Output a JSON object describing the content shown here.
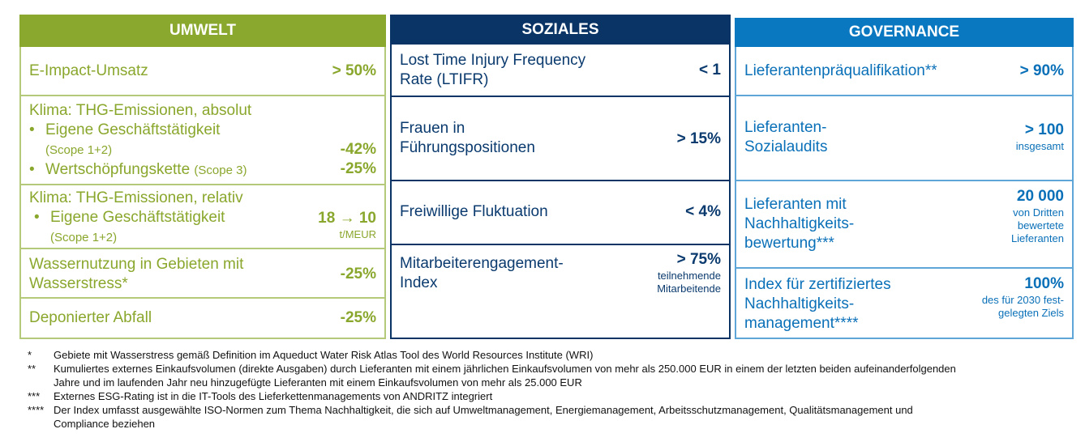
{
  "umwelt": {
    "title": "UMWELT",
    "rows": [
      {
        "label": "E-Impact-Umsatz",
        "value": "> 50%"
      },
      {
        "label": "Klima: THG-Emissionen, absolut",
        "b1": "Eigene Geschäftstätigkeit",
        "b1sub": "(Scope 1+2)",
        "v1": "-42%",
        "b2": "Wertschöpfungskette",
        "b2sub": "(Scope 3)",
        "v2": "-25%"
      },
      {
        "label": "Klima: THG-Emissionen, relativ",
        "b1": "Eigene Geschäftstätigkeit",
        "b1sub": "(Scope 1+2)",
        "value": "18 → 10",
        "unit": "t/MEUR"
      },
      {
        "label1": "Wassernutzung in Gebieten mit",
        "label2": "Wasserstress*",
        "value": "-25%"
      },
      {
        "label": "Deponierter Abfall",
        "value": "-25%"
      }
    ]
  },
  "soziales": {
    "title": "SOZIALES",
    "rows": [
      {
        "label1": "Lost Time Injury Frequency",
        "label2": "Rate (LTIFR)",
        "value": "< 1"
      },
      {
        "label1": "Frauen in",
        "label2": "Führungspositionen",
        "value": "> 15%"
      },
      {
        "label": "Freiwillige Fluktuation",
        "value": "< 4%"
      },
      {
        "label1": "Mitarbeiterengagement-",
        "label2": "Index",
        "value": "> 75%",
        "sub1": "teilnehmende",
        "sub2": "Mitarbeitende"
      }
    ]
  },
  "governance": {
    "title": "GOVERNANCE",
    "rows": [
      {
        "label": "Lieferantenpräqualifikation**",
        "value": "> 90%"
      },
      {
        "label1": "Lieferanten-",
        "label2": "Sozialaudits",
        "value": "> 100",
        "sub1": "insgesamt"
      },
      {
        "label1": "Lieferanten mit",
        "label2": "Nachhaltigkeits-",
        "label3": "bewertung***",
        "value": "20 000",
        "sub1": "von Dritten",
        "sub2": "bewertete",
        "sub3": "Lieferanten"
      },
      {
        "label1": "Index für zertifiziertes",
        "label2": "Nachhaltigkeits-",
        "label3": "management****",
        "value": "100%",
        "sub1": "des für 2030 fest-",
        "sub2": "gelegten Ziels"
      }
    ]
  },
  "footnotes": [
    {
      "mark": "*",
      "lines": [
        "Gebiete mit Wasserstress gemäß Definition im Aqueduct Water Risk Atlas Tool des World Resources Institute (WRI)"
      ]
    },
    {
      "mark": "**",
      "lines": [
        "Kumuliertes externes Einkaufsvolumen (direkte Ausgaben) durch Lieferanten mit einem jährlichen Einkaufsvolumen von mehr als 250.000 EUR in einem der letzten beiden aufeinanderfolgenden",
        "Jahre und im laufenden Jahr neu hinzugefügte Lieferanten mit einem Einkaufsvolumen von mehr als 25.000 EUR"
      ]
    },
    {
      "mark": "***",
      "lines": [
        "Externes ESG-Rating ist in die IT-Tools des Lieferkettenmanagements von ANDRITZ integriert"
      ]
    },
    {
      "mark": "****",
      "lines": [
        "Der Index umfasst ausgewählte ISO-Normen zum Thema Nachhaltigkeit, die sich auf Umweltmanagement, Energiemanagement, Arbeitsschutzmanagement, Qualitätsmanagement und",
        "Compliance beziehen"
      ]
    }
  ]
}
